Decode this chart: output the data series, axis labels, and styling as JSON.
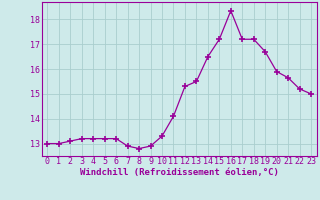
{
  "x": [
    0,
    1,
    2,
    3,
    4,
    5,
    6,
    7,
    8,
    9,
    10,
    11,
    12,
    13,
    14,
    15,
    16,
    17,
    18,
    19,
    20,
    21,
    22,
    23
  ],
  "y": [
    13.0,
    13.0,
    13.1,
    13.2,
    13.2,
    13.2,
    13.2,
    12.9,
    12.8,
    12.9,
    13.3,
    14.1,
    15.3,
    15.5,
    16.5,
    17.2,
    18.35,
    17.2,
    17.2,
    16.7,
    15.9,
    15.65,
    15.2,
    15.0
  ],
  "line_color": "#990099",
  "marker": "+",
  "marker_size": 4,
  "marker_linewidth": 1.2,
  "background_color": "#ceeaea",
  "grid_color": "#aacece",
  "xlabel": "Windchill (Refroidissement éolien,°C)",
  "xlim": [
    -0.5,
    23.5
  ],
  "ylim": [
    12.5,
    18.7
  ],
  "yticks": [
    13,
    14,
    15,
    16,
    17,
    18
  ],
  "xticks": [
    0,
    1,
    2,
    3,
    4,
    5,
    6,
    7,
    8,
    9,
    10,
    11,
    12,
    13,
    14,
    15,
    16,
    17,
    18,
    19,
    20,
    21,
    22,
    23
  ],
  "label_fontsize": 6.5,
  "tick_fontsize": 6.0
}
